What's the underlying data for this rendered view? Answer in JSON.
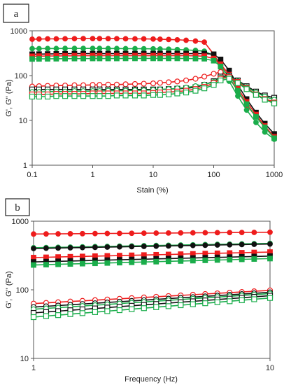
{
  "chart_data": [
    {
      "type": "scatter",
      "panel_label": "a",
      "xlabel": "Stain (%)",
      "ylabel": "G', G'' (Pa)",
      "x_scale": "log",
      "y_scale": "log",
      "xlim": [
        0.1,
        1000
      ],
      "ylim": [
        1,
        1000
      ],
      "x_ticks": [
        "0.1",
        "1",
        "10",
        "100",
        "1000"
      ],
      "y_ticks": [
        "1",
        "10",
        "100",
        "1000"
      ],
      "grid": false,
      "legend": "none",
      "x": [
        0.1,
        0.13,
        0.18,
        0.25,
        0.35,
        0.5,
        0.7,
        1,
        1.3,
        1.8,
        2.5,
        3.5,
        5,
        7,
        10,
        13,
        18,
        25,
        35,
        50,
        70,
        100,
        130,
        180,
        250,
        350,
        500,
        700,
        1000
      ],
      "series": [
        {
          "color": "#ee1c1c",
          "marker": "circle",
          "filled": true,
          "values": [
            650,
            655,
            660,
            662,
            665,
            668,
            670,
            670,
            670,
            668,
            668,
            665,
            662,
            660,
            655,
            650,
            640,
            630,
            615,
            590,
            560,
            300,
            170,
            90,
            45,
            22,
            12,
            7,
            4.5
          ]
        },
        {
          "color": "#1aad4b",
          "marker": "circle",
          "filled": true,
          "values": [
            400,
            400,
            402,
            402,
            404,
            404,
            404,
            404,
            404,
            402,
            402,
            400,
            400,
            398,
            395,
            392,
            388,
            382,
            375,
            365,
            350,
            280,
            150,
            75,
            35,
            17,
            9,
            5.5,
            3.8
          ]
        },
        {
          "color": "#111111",
          "marker": "square",
          "filled": true,
          "values": [
            300,
            302,
            304,
            306,
            308,
            310,
            310,
            310,
            310,
            310,
            310,
            310,
            310,
            310,
            310,
            310,
            310,
            310,
            310,
            310,
            310,
            300,
            230,
            130,
            62,
            30,
            15,
            8.5,
            5
          ]
        },
        {
          "color": "#ee1c1c",
          "marker": "square",
          "filled": true,
          "values": [
            270,
            272,
            274,
            275,
            276,
            277,
            278,
            278,
            278,
            278,
            278,
            278,
            278,
            278,
            278,
            278,
            278,
            278,
            278,
            276,
            272,
            240,
            180,
            105,
            52,
            26,
            13.5,
            7.5,
            4.3
          ]
        },
        {
          "color": "#1aad4b",
          "marker": "square",
          "filled": true,
          "values": [
            235,
            236,
            237,
            238,
            239,
            240,
            240,
            241,
            241,
            241,
            241,
            242,
            242,
            242,
            242,
            242,
            242,
            242,
            241,
            240,
            238,
            215,
            160,
            92,
            46,
            23,
            12,
            7,
            4
          ]
        },
        {
          "color": "#ee1c1c",
          "marker": "circle",
          "filled": false,
          "values": [
            57,
            58,
            59,
            60,
            60,
            61,
            61,
            62,
            62,
            63,
            63,
            64,
            65,
            66,
            67,
            69,
            71,
            74,
            78,
            85,
            95,
            110,
            120,
            95,
            70,
            50,
            38,
            30,
            26
          ]
        },
        {
          "color": "#111111",
          "marker": "square",
          "filled": false,
          "values": [
            49,
            49,
            49,
            49,
            49,
            49,
            49,
            49,
            49,
            49,
            49,
            49,
            49,
            49,
            49,
            49,
            50,
            51,
            52,
            55,
            62,
            75,
            95,
            100,
            78,
            58,
            44,
            36,
            32
          ]
        },
        {
          "color": "#1aad4b",
          "marker": "circle",
          "filled": false,
          "values": [
            43,
            43,
            44,
            44,
            44,
            45,
            45,
            45,
            45,
            46,
            46,
            46,
            47,
            47,
            48,
            49,
            50,
            52,
            54,
            58,
            63,
            72,
            90,
            95,
            75,
            55,
            42,
            34,
            29
          ]
        },
        {
          "color": "#ee1c1c",
          "marker": "square",
          "filled": false,
          "values": [
            38,
            38,
            38,
            39,
            39,
            39,
            39,
            40,
            40,
            40,
            40,
            40,
            40,
            40,
            41,
            42,
            43,
            44,
            46,
            50,
            56,
            68,
            85,
            92,
            72,
            52,
            38,
            30,
            25
          ]
        },
        {
          "color": "#1aad4b",
          "marker": "square",
          "filled": false,
          "values": [
            34,
            34,
            34,
            35,
            35,
            35,
            35,
            35,
            35,
            35,
            36,
            36,
            36,
            36,
            37,
            37,
            38,
            40,
            42,
            46,
            52,
            62,
            78,
            85,
            68,
            50,
            37,
            29,
            24
          ]
        }
      ]
    },
    {
      "type": "scatter",
      "panel_label": "b",
      "xlabel": "Frequency (Hz)",
      "ylabel": "G', G'' (Pa)",
      "x_scale": "log",
      "y_scale": "log",
      "xlim": [
        1,
        10
      ],
      "ylim": [
        10,
        1000
      ],
      "x_ticks": [
        "1",
        "10"
      ],
      "y_ticks": [
        "10",
        "100",
        "1000"
      ],
      "grid": false,
      "legend": "none",
      "x": [
        1,
        1.13,
        1.27,
        1.43,
        1.61,
        1.82,
        2.05,
        2.31,
        2.6,
        2.93,
        3.3,
        3.72,
        4.19,
        4.72,
        5.32,
        5.99,
        6.75,
        7.6,
        8.57,
        10
      ],
      "series": [
        {
          "color": "#ee1c1c",
          "marker": "circle",
          "filled": true,
          "start": 650,
          "end": 690
        },
        {
          "color": "#1aad4b",
          "marker": "circle",
          "filled": true,
          "start": 410,
          "end": 475
        },
        {
          "color": "#111111",
          "marker": "circle",
          "filled": true,
          "start": 400,
          "end": 465
        },
        {
          "color": "#ee1c1c",
          "marker": "square",
          "filled": true,
          "start": 295,
          "end": 355
        },
        {
          "color": "#111111",
          "marker": "square",
          "filled": true,
          "start": 255,
          "end": 310
        },
        {
          "color": "#1aad4b",
          "marker": "square",
          "filled": true,
          "start": 230,
          "end": 285
        },
        {
          "color": "#ee1c1c",
          "marker": "circle",
          "filled": false,
          "start": 63,
          "end": 98
        },
        {
          "color": "#111111",
          "marker": "circle",
          "filled": false,
          "start": 56,
          "end": 92
        },
        {
          "color": "#1aad4b",
          "marker": "circle",
          "filled": false,
          "start": 52,
          "end": 88
        },
        {
          "color": "#111111",
          "marker": "square",
          "filled": false,
          "start": 46,
          "end": 82
        },
        {
          "color": "#1aad4b",
          "marker": "square",
          "filled": false,
          "start": 40,
          "end": 76
        }
      ]
    }
  ]
}
